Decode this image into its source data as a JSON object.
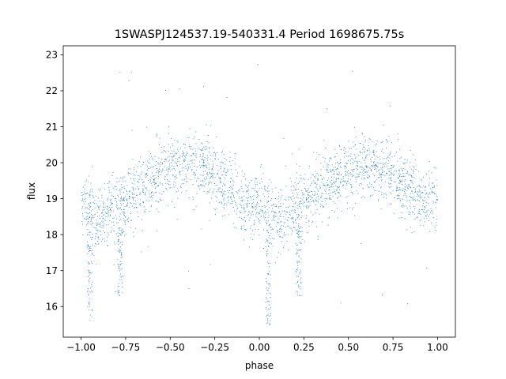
{
  "chart_data": {
    "type": "scatter",
    "title": "1SWASPJ124537.19-540331.4 Period 1698675.75s",
    "xlabel": "phase",
    "ylabel": "flux",
    "xlim": [
      -1.1,
      1.1
    ],
    "ylim": [
      15.15,
      23.25
    ],
    "xticks": [
      -1.0,
      -0.75,
      -0.5,
      -0.25,
      0.0,
      0.25,
      0.5,
      0.75,
      1.0
    ],
    "xtick_labels": [
      "−1.00",
      "−0.75",
      "−0.50",
      "−0.25",
      "0.00",
      "0.25",
      "0.50",
      "0.75",
      "1.00"
    ],
    "yticks": [
      16,
      17,
      18,
      19,
      20,
      21,
      22,
      23
    ],
    "ytick_labels": [
      "16",
      "17",
      "18",
      "19",
      "20",
      "21",
      "22",
      "23"
    ],
    "grid": false,
    "point_color": "#1f77b4",
    "trend": {
      "phase": [
        0.0,
        0.05,
        0.1,
        0.15,
        0.2,
        0.25,
        0.3,
        0.35,
        0.4,
        0.45,
        0.5,
        0.55,
        0.6,
        0.65,
        0.7,
        0.75,
        0.8,
        0.85,
        0.9,
        0.95,
        1.0
      ],
      "flux": [
        18.9,
        18.6,
        18.4,
        18.5,
        18.7,
        18.9,
        19.1,
        19.3,
        19.5,
        19.7,
        19.8,
        19.9,
        19.95,
        19.9,
        19.8,
        19.6,
        19.4,
        19.2,
        19.0,
        18.8,
        18.9
      ],
      "scatter": 0.45,
      "extent": [
        -1.0,
        1.0
      ],
      "symmetric": true
    },
    "dips": [
      {
        "phase": -0.95,
        "flux_range": [
          15.5,
          18.5
        ]
      },
      {
        "phase": 0.05,
        "flux_range": [
          15.5,
          18.4
        ]
      },
      {
        "phase": -0.78,
        "flux_range": [
          16.3,
          18.2
        ]
      },
      {
        "phase": 0.22,
        "flux_range": [
          16.3,
          18.2
        ]
      }
    ]
  }
}
